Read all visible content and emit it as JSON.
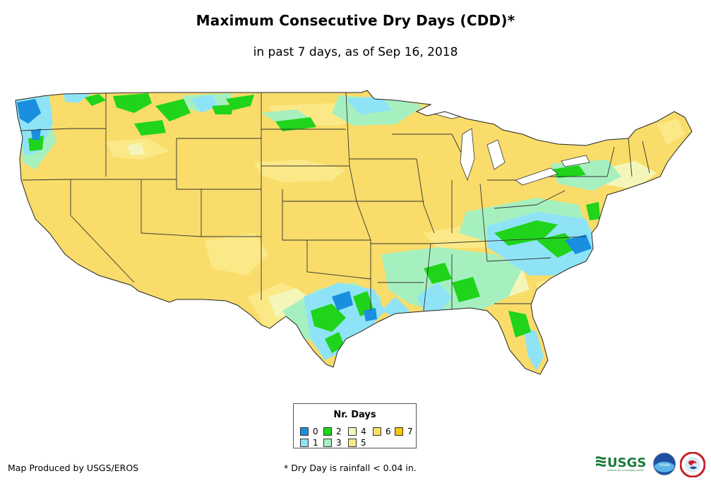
{
  "title": "Maximum Consecutive Dry Days (CDD)*",
  "subtitle": "in past 7 days, as of Sep 16, 2018",
  "legend": {
    "title": "Nr. Days",
    "items": [
      {
        "label": "0",
        "color": "#1a8fe0"
      },
      {
        "label": "1",
        "color": "#8fe3f7"
      },
      {
        "label": "2",
        "color": "#1fd41a"
      },
      {
        "label": "3",
        "color": "#a6f0c0"
      },
      {
        "label": "4",
        "color": "#f3f6b8"
      },
      {
        "label": "5",
        "color": "#fbe987"
      },
      {
        "label": "6",
        "color": "#f9dc6a"
      },
      {
        "label": "7",
        "color": "#f7c500"
      }
    ]
  },
  "map": {
    "base_category": "6",
    "region": "Contiguous United States"
  },
  "footer": {
    "credit": "Map Produced by USGS/EROS",
    "note": "* Dry Day is rainfall < 0.04 in."
  },
  "logos": {
    "usgs_text": "USGS",
    "usgs_tagline": "science for a changing world",
    "noaa_text": "noaa"
  }
}
